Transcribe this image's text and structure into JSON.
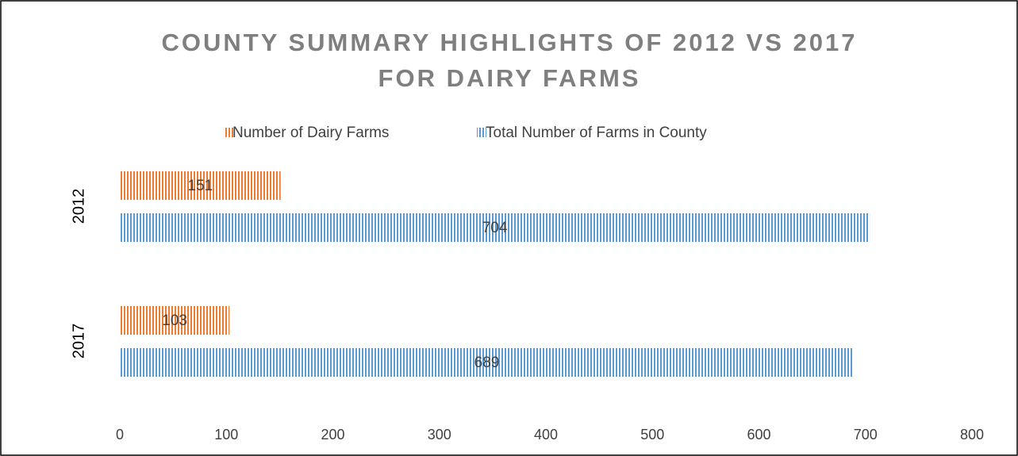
{
  "chart_data": {
    "type": "barh",
    "title": [
      "COUNTY SUMMARY HIGHLIGHTS OF 2012 VS 2017",
      "FOR DAIRY FARMS"
    ],
    "categories": [
      "2012",
      "2017"
    ],
    "series": [
      {
        "name": "Number of Dairy Farms",
        "color": "#ed7d31",
        "values": [
          151,
          103
        ]
      },
      {
        "name": "Total Number of Farms in County",
        "color": "#5b9bd5",
        "values": [
          704,
          689
        ]
      }
    ],
    "xlim": [
      0,
      800
    ],
    "xticks": [
      0,
      100,
      200,
      300,
      400,
      500,
      600,
      700,
      800
    ],
    "legend": "top",
    "grid": false
  }
}
